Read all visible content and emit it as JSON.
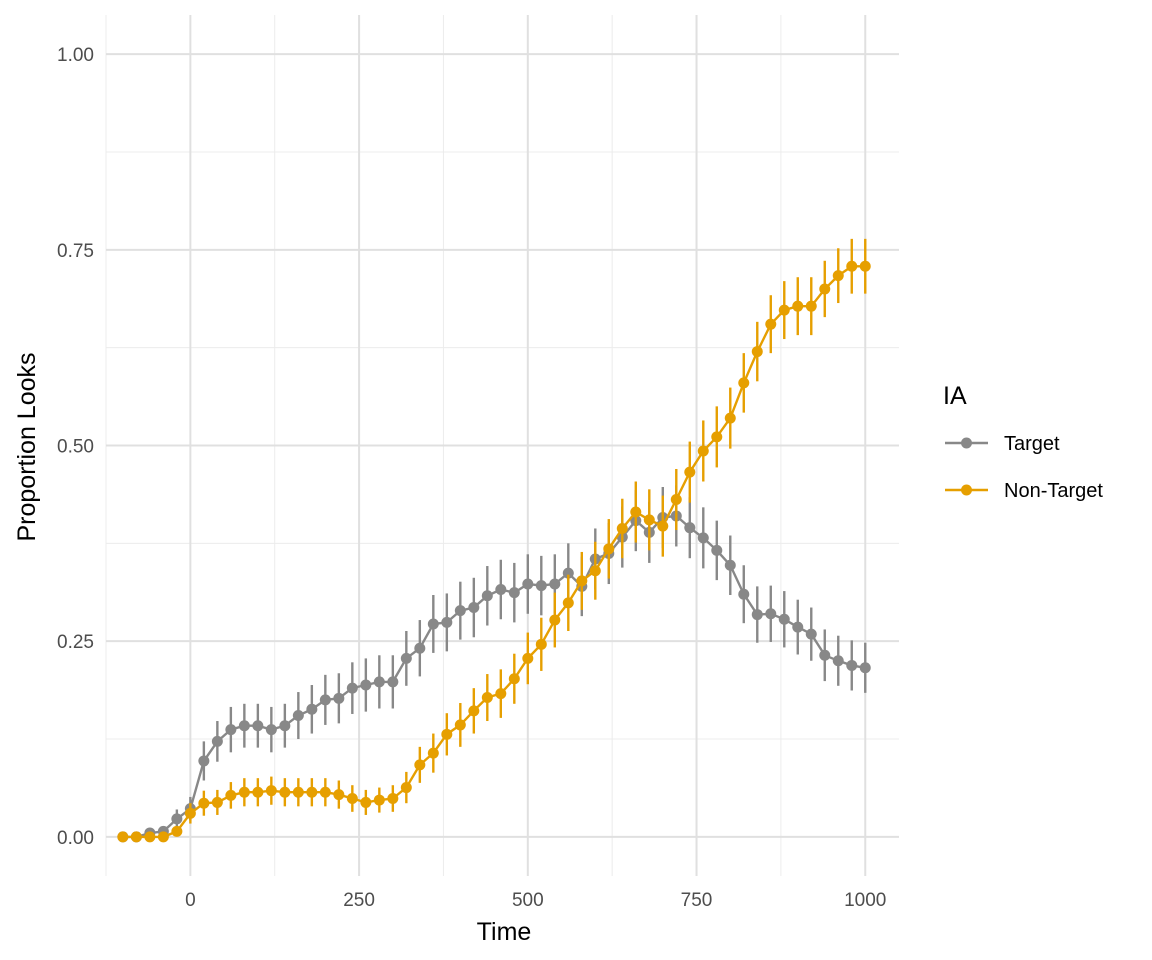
{
  "chart_data": {
    "type": "line",
    "xlabel": "Time",
    "ylabel": "Proportion Looks",
    "xlim": [
      -125,
      1050
    ],
    "ylim": [
      -0.05,
      1.05
    ],
    "x_ticks": [
      0,
      250,
      500,
      750,
      1000
    ],
    "x_tick_labels": [
      "0",
      "250",
      "500",
      "750",
      "1000"
    ],
    "y_ticks": [
      0,
      0.25,
      0.5,
      0.75,
      1
    ],
    "y_tick_labels": [
      "0.00",
      "0.25",
      "0.50",
      "0.75",
      "1.00"
    ],
    "grid": true,
    "legend": {
      "title": "IA",
      "position": "right"
    },
    "x": [
      -100,
      -80,
      -60,
      -40,
      -20,
      0,
      20,
      40,
      60,
      80,
      100,
      120,
      140,
      160,
      180,
      200,
      220,
      240,
      260,
      280,
      300,
      320,
      340,
      360,
      380,
      400,
      420,
      440,
      460,
      480,
      500,
      520,
      540,
      560,
      580,
      600,
      620,
      640,
      660,
      680,
      700,
      720,
      740,
      760,
      780,
      800,
      820,
      840,
      860,
      880,
      900,
      920,
      940,
      960,
      980,
      1000
    ],
    "series": [
      {
        "name": "Target",
        "color": "#888888",
        "values": [
          0.0,
          0.0,
          0.005,
          0.007,
          0.023,
          0.036,
          0.097,
          0.122,
          0.137,
          0.142,
          0.142,
          0.137,
          0.142,
          0.155,
          0.163,
          0.175,
          0.177,
          0.19,
          0.194,
          0.198,
          0.198,
          0.228,
          0.241,
          0.272,
          0.274,
          0.289,
          0.293,
          0.308,
          0.316,
          0.312,
          0.323,
          0.321,
          0.323,
          0.337,
          0.32,
          0.355,
          0.362,
          0.383,
          0.404,
          0.389,
          0.408,
          0.41,
          0.395,
          0.382,
          0.366,
          0.347,
          0.31,
          0.284,
          0.285,
          0.278,
          0.268,
          0.259,
          0.232,
          0.225,
          0.219,
          0.216
        ],
        "errors": [
          0.0,
          0.0,
          0.004,
          0.005,
          0.012,
          0.015,
          0.025,
          0.026,
          0.029,
          0.028,
          0.028,
          0.029,
          0.028,
          0.03,
          0.031,
          0.032,
          0.032,
          0.033,
          0.034,
          0.034,
          0.034,
          0.035,
          0.036,
          0.037,
          0.037,
          0.037,
          0.038,
          0.038,
          0.038,
          0.038,
          0.038,
          0.038,
          0.038,
          0.038,
          0.038,
          0.039,
          0.039,
          0.039,
          0.039,
          0.039,
          0.039,
          0.039,
          0.039,
          0.039,
          0.038,
          0.038,
          0.037,
          0.036,
          0.036,
          0.036,
          0.035,
          0.034,
          0.033,
          0.032,
          0.032,
          0.032
        ]
      },
      {
        "name": "Non-Target",
        "color": "#e69f00",
        "values": [
          0.0,
          0.0,
          0.0,
          0.0,
          0.007,
          0.03,
          0.043,
          0.044,
          0.053,
          0.057,
          0.057,
          0.059,
          0.057,
          0.057,
          0.057,
          0.057,
          0.054,
          0.049,
          0.044,
          0.047,
          0.049,
          0.063,
          0.092,
          0.107,
          0.131,
          0.143,
          0.161,
          0.178,
          0.183,
          0.202,
          0.228,
          0.246,
          0.277,
          0.299,
          0.327,
          0.34,
          0.368,
          0.394,
          0.415,
          0.405,
          0.397,
          0.431,
          0.466,
          0.493,
          0.511,
          0.535,
          0.58,
          0.62,
          0.655,
          0.673,
          0.678,
          0.678,
          0.7,
          0.717,
          0.729,
          0.729
        ],
        "errors": [
          0.0,
          0.0,
          0.0,
          0.0,
          0.006,
          0.013,
          0.016,
          0.016,
          0.017,
          0.018,
          0.018,
          0.018,
          0.018,
          0.018,
          0.018,
          0.018,
          0.018,
          0.017,
          0.016,
          0.016,
          0.017,
          0.02,
          0.023,
          0.025,
          0.027,
          0.028,
          0.029,
          0.03,
          0.031,
          0.032,
          0.033,
          0.034,
          0.035,
          0.036,
          0.037,
          0.037,
          0.038,
          0.038,
          0.039,
          0.039,
          0.039,
          0.039,
          0.039,
          0.039,
          0.039,
          0.039,
          0.038,
          0.038,
          0.037,
          0.037,
          0.037,
          0.037,
          0.036,
          0.035,
          0.035,
          0.035
        ]
      }
    ]
  }
}
